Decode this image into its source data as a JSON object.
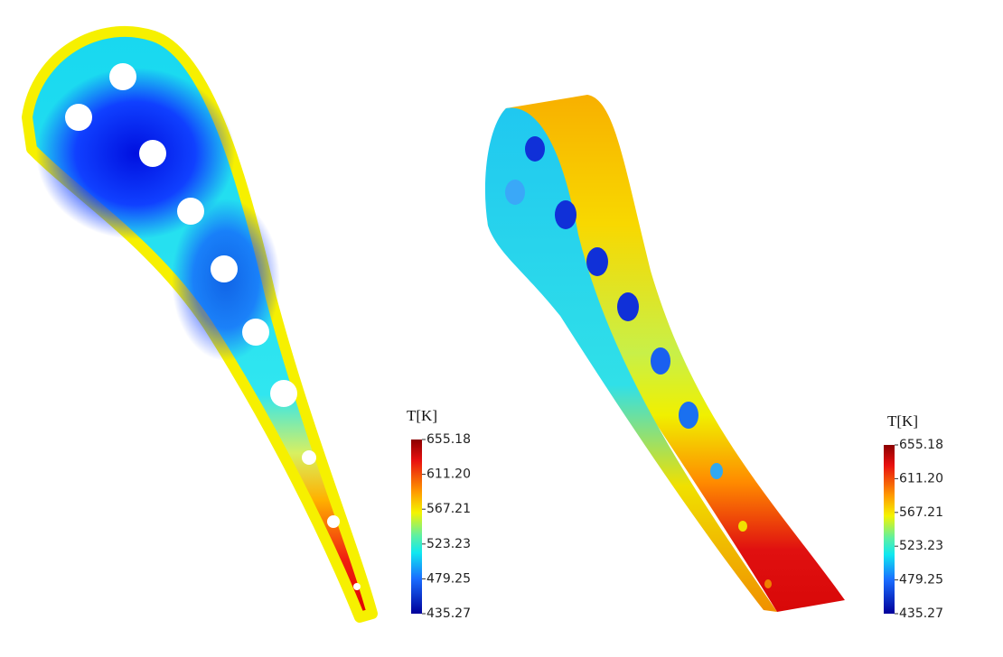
{
  "panels": [
    {
      "colorbar": {
        "title": "T[K]",
        "ticks": [
          "655.18",
          "611.20",
          "567.21",
          "523.23",
          "479.25",
          "435.27"
        ]
      }
    },
    {
      "colorbar": {
        "title": "T[K]",
        "ticks": [
          "655.18",
          "611.20",
          "567.21",
          "523.23",
          "479.25",
          "435.27"
        ]
      }
    }
  ]
}
